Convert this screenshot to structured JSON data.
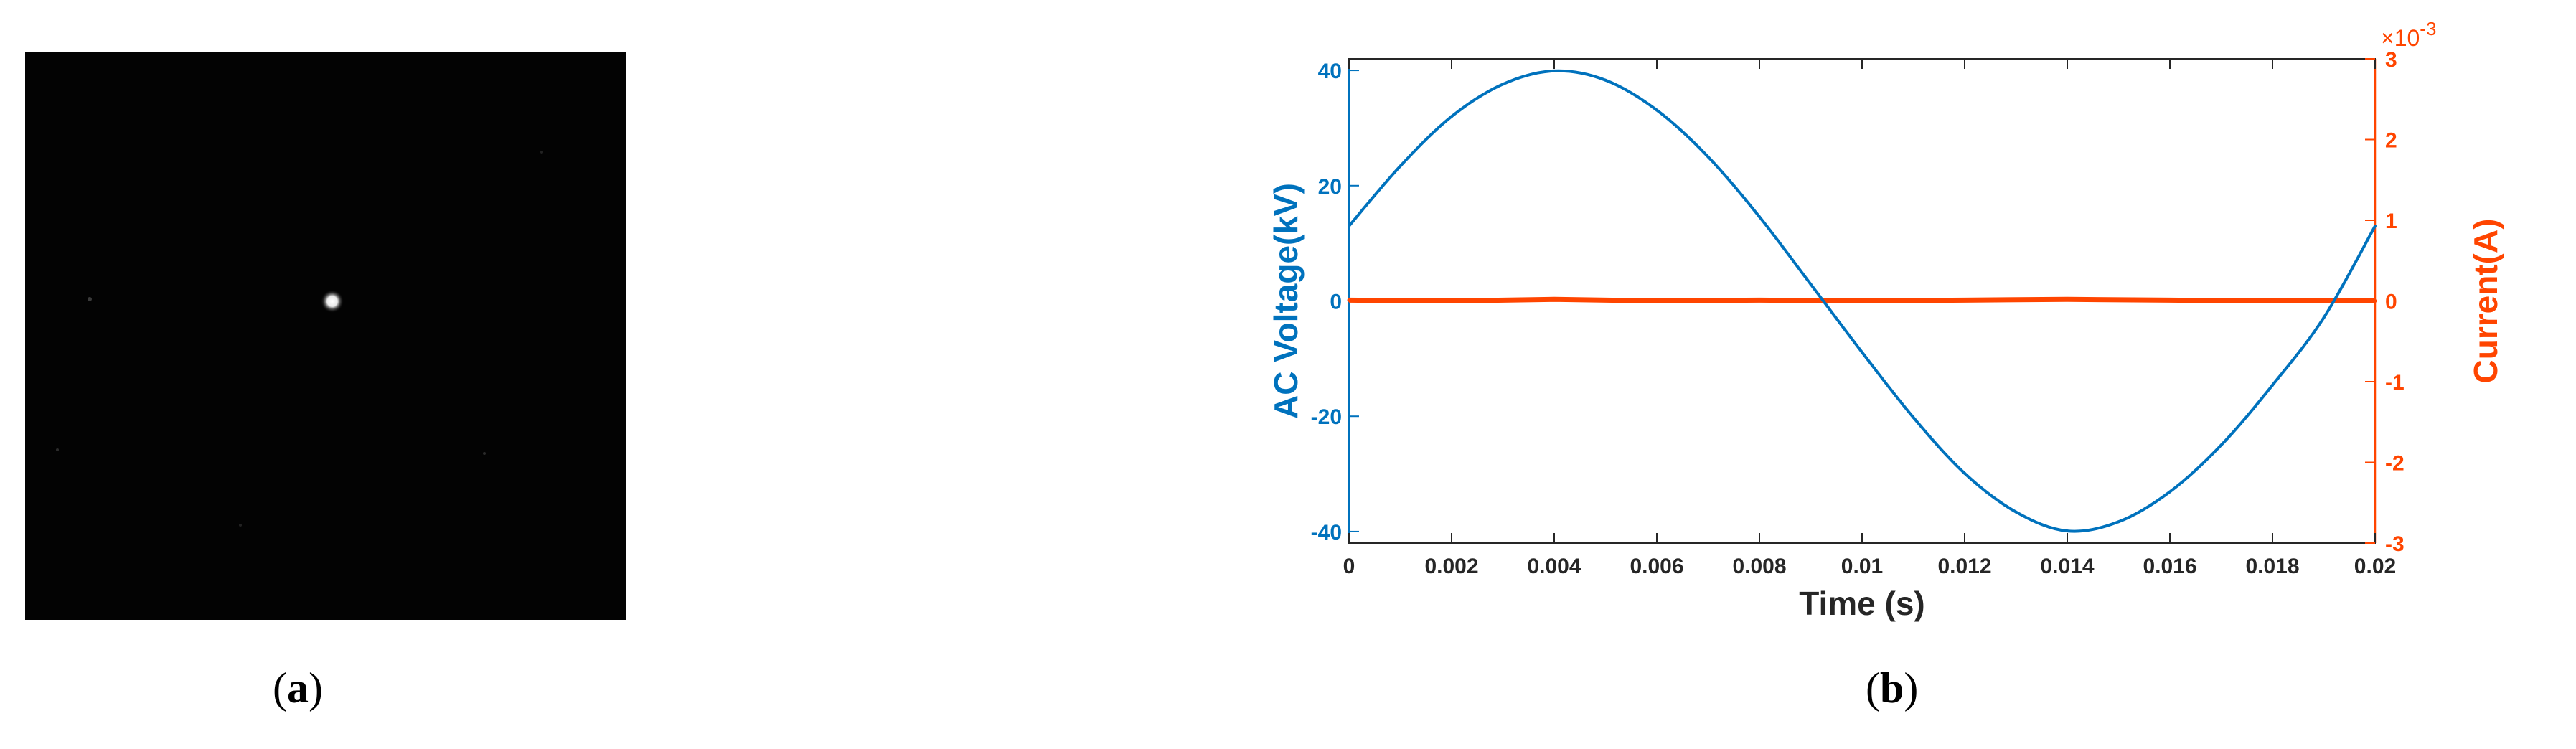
{
  "captions": {
    "a": "a",
    "b": "b"
  },
  "image_a": {
    "background": "#030303",
    "spot_color": "#ffffff"
  },
  "chart_data": {
    "type": "line",
    "xlabel": "Time (s)",
    "ylabel_left": "AC Voltage(kV)",
    "ylabel_right": "Current(A)",
    "right_exponent_label": "×10",
    "right_exponent_power": "-3",
    "xlim": [
      0,
      0.02
    ],
    "ylim_left": [
      -42,
      42
    ],
    "ylim_right": [
      -3,
      3
    ],
    "xticks": [
      "0",
      "0.002",
      "0.004",
      "0.006",
      "0.008",
      "0.01",
      "0.012",
      "0.014",
      "0.016",
      "0.018",
      "0.02"
    ],
    "yticks_left": [
      "40",
      "20",
      "0",
      "-20",
      "-40"
    ],
    "yticks_right": [
      "3",
      "2",
      "1",
      "0",
      "-1",
      "-2",
      "-3"
    ],
    "colors": {
      "voltage": "#0072BD",
      "current": "#FF4500",
      "axes": "#262626"
    },
    "series": [
      {
        "axis": "left",
        "x": [
          0,
          0.001,
          0.002,
          0.003,
          0.004,
          0.005,
          0.006,
          0.007,
          0.008,
          0.009,
          0.01,
          0.011,
          0.012,
          0.013,
          0.014,
          0.015,
          0.016,
          0.017,
          0.018,
          0.019,
          0.02
        ],
        "values": [
          13,
          23.4,
          32,
          37.6,
          39.9,
          38.3,
          33.1,
          25,
          14.6,
          2.9,
          -8.9,
          -20.2,
          -29.9,
          -36.6,
          -39.9,
          -38.3,
          -33.1,
          -25,
          -14.6,
          -2.9,
          13
        ]
      },
      {
        "axis": "right",
        "x": [
          0,
          0.002,
          0.004,
          0.006,
          0.008,
          0.01,
          0.012,
          0.014,
          0.016,
          0.018,
          0.02
        ],
        "values": [
          0.01,
          0.0,
          0.02,
          0.0,
          0.01,
          0.0,
          0.01,
          0.02,
          0.01,
          0.0,
          0.0
        ]
      }
    ]
  }
}
